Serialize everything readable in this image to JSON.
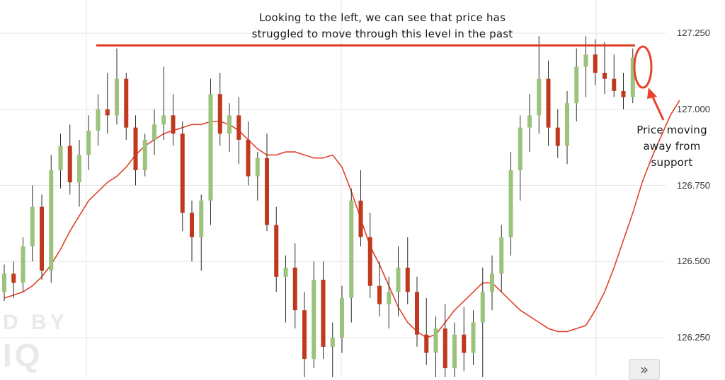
{
  "annotations": {
    "top_line1": "Looking to the left, we can see that price has",
    "top_line2": "struggled to move through this level in the past",
    "right_line1": "Price moving",
    "right_line2": "away from",
    "right_line3": "support"
  },
  "watermark": {
    "line1": "D BY",
    "line2": "IQ"
  },
  "scroll_button": {
    "label": "»",
    "icon": "double-chevron-right-icon"
  },
  "colors": {
    "bull": "#9bc37d",
    "bear": "#c0391f",
    "wick": "#2a2a2a",
    "moving_average": "#e0412a",
    "resistance_line": "#e03a22",
    "callout": "#e8442a",
    "grid": "#e6e6e6"
  },
  "chart_data": {
    "type": "candlestick",
    "y_axis": {
      "position": "right",
      "ticks": [
        "127.250",
        "127.000",
        "126.750",
        "126.500",
        "126.250"
      ],
      "tick_values": [
        127.25,
        127.0,
        126.75,
        126.5,
        126.25
      ],
      "range": [
        126.09,
        127.34
      ]
    },
    "grid": true,
    "resistance_level": 127.21,
    "moving_average_values": [
      126.38,
      126.39,
      126.4,
      126.42,
      126.45,
      126.49,
      126.54,
      126.6,
      126.65,
      126.7,
      126.73,
      126.76,
      126.78,
      126.81,
      126.85,
      126.88,
      126.9,
      126.92,
      126.93,
      126.94,
      126.95,
      126.95,
      126.96,
      126.96,
      126.95,
      126.93,
      126.9,
      126.87,
      126.85,
      126.85,
      126.86,
      126.86,
      126.85,
      126.84,
      126.84,
      126.85,
      126.81,
      126.73,
      126.64,
      126.55,
      126.49,
      126.42,
      126.35,
      126.3,
      126.27,
      126.25,
      126.26,
      126.3,
      126.34,
      126.37,
      126.4,
      126.43,
      126.43,
      126.4,
      126.37,
      126.34,
      126.32,
      126.3,
      126.28,
      126.27,
      126.27,
      126.28,
      126.29,
      126.34,
      126.4,
      126.48,
      126.57,
      126.66,
      126.76,
      126.84,
      126.91,
      126.98,
      127.03
    ],
    "candles_ohlc": [
      [
        126.4,
        126.49,
        126.37,
        126.46
      ],
      [
        126.46,
        126.5,
        126.38,
        126.43
      ],
      [
        126.43,
        126.58,
        126.4,
        126.55
      ],
      [
        126.55,
        126.75,
        126.5,
        126.68
      ],
      [
        126.68,
        126.72,
        126.44,
        126.47
      ],
      [
        126.47,
        126.85,
        126.43,
        126.8
      ],
      [
        126.8,
        126.92,
        126.74,
        126.88
      ],
      [
        126.88,
        126.95,
        126.72,
        126.76
      ],
      [
        126.76,
        126.9,
        126.68,
        126.85
      ],
      [
        126.85,
        126.98,
        126.8,
        126.93
      ],
      [
        126.93,
        127.05,
        126.88,
        127.0
      ],
      [
        127.0,
        127.12,
        126.92,
        126.98
      ],
      [
        126.98,
        127.2,
        126.95,
        127.1
      ],
      [
        127.1,
        127.12,
        126.9,
        126.94
      ],
      [
        126.94,
        126.98,
        126.75,
        126.8
      ],
      [
        126.8,
        126.92,
        126.78,
        126.9
      ],
      [
        126.9,
        127.0,
        126.85,
        126.95
      ],
      [
        126.95,
        127.14,
        126.9,
        126.98
      ],
      [
        126.98,
        127.05,
        126.88,
        126.92
      ],
      [
        126.92,
        126.96,
        126.6,
        126.66
      ],
      [
        126.66,
        126.7,
        126.5,
        126.58
      ],
      [
        126.58,
        126.72,
        126.47,
        126.7
      ],
      [
        126.7,
        127.1,
        126.62,
        127.05
      ],
      [
        127.05,
        127.12,
        126.88,
        126.92
      ],
      [
        126.92,
        127.02,
        126.86,
        126.98
      ],
      [
        126.98,
        127.04,
        126.82,
        126.9
      ],
      [
        126.9,
        126.96,
        126.75,
        126.78
      ],
      [
        126.78,
        126.86,
        126.7,
        126.84
      ],
      [
        126.84,
        126.92,
        126.6,
        126.62
      ],
      [
        126.62,
        126.68,
        126.4,
        126.45
      ],
      [
        126.45,
        126.52,
        126.3,
        126.48
      ],
      [
        126.48,
        126.56,
        126.28,
        126.34
      ],
      [
        126.34,
        126.4,
        126.1,
        126.18
      ],
      [
        126.18,
        126.5,
        126.15,
        126.44
      ],
      [
        126.44,
        126.5,
        126.18,
        126.22
      ],
      [
        126.22,
        126.3,
        126.12,
        126.25
      ],
      [
        126.25,
        126.42,
        126.2,
        126.38
      ],
      [
        126.38,
        126.74,
        126.3,
        126.7
      ],
      [
        126.7,
        126.8,
        126.55,
        126.58
      ],
      [
        126.58,
        126.66,
        126.38,
        126.42
      ],
      [
        126.42,
        126.5,
        126.32,
        126.36
      ],
      [
        126.36,
        126.45,
        126.28,
        126.4
      ],
      [
        126.4,
        126.55,
        126.32,
        126.48
      ],
      [
        126.48,
        126.58,
        126.36,
        126.4
      ],
      [
        126.4,
        126.45,
        126.22,
        126.26
      ],
      [
        126.26,
        126.38,
        126.16,
        126.2
      ],
      [
        126.2,
        126.32,
        126.12,
        126.28
      ],
      [
        126.28,
        126.36,
        126.1,
        126.15
      ],
      [
        126.15,
        126.3,
        126.08,
        126.26
      ],
      [
        126.26,
        126.35,
        126.14,
        126.2
      ],
      [
        126.2,
        126.34,
        126.16,
        126.3
      ],
      [
        126.3,
        126.48,
        126.12,
        126.4
      ],
      [
        126.4,
        126.52,
        126.34,
        126.46
      ],
      [
        126.46,
        126.62,
        126.4,
        126.58
      ],
      [
        126.58,
        126.86,
        126.52,
        126.8
      ],
      [
        126.8,
        126.98,
        126.7,
        126.94
      ],
      [
        126.94,
        127.05,
        126.86,
        126.98
      ],
      [
        126.98,
        127.24,
        126.92,
        127.1
      ],
      [
        127.1,
        127.16,
        126.88,
        126.94
      ],
      [
        126.94,
        127.0,
        126.84,
        126.88
      ],
      [
        126.88,
        127.06,
        126.82,
        127.02
      ],
      [
        127.02,
        127.2,
        126.96,
        127.14
      ],
      [
        127.14,
        127.24,
        127.04,
        127.18
      ],
      [
        127.18,
        127.23,
        127.08,
        127.12
      ],
      [
        127.12,
        127.22,
        127.05,
        127.1
      ],
      [
        127.1,
        127.18,
        127.04,
        127.06
      ],
      [
        127.06,
        127.12,
        127.0,
        127.04
      ],
      [
        127.04,
        127.2,
        127.02,
        127.17
      ]
    ]
  }
}
